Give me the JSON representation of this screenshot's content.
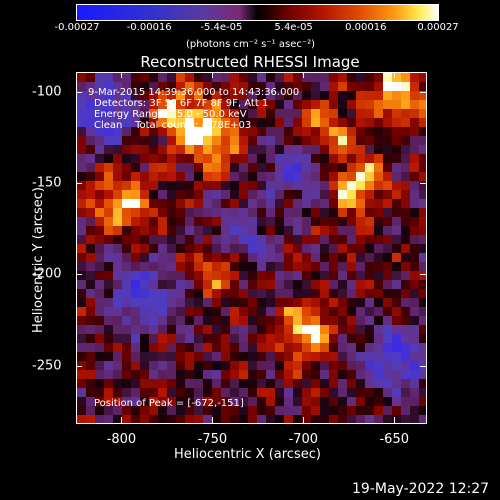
{
  "chart_data": {
    "type": "heatmap",
    "title": "Reconstructed RHESSI Image",
    "xlabel": "Heliocentric X (arcsec)",
    "ylabel": "Heliocentric Y (arcsec)",
    "xlim": [
      -825,
      -632
    ],
    "ylim": [
      -282,
      -89
    ],
    "x_ticks": [
      "-800",
      "-750",
      "-700",
      "-650"
    ],
    "y_ticks": [
      "-100",
      "-150",
      "-200",
      "-250"
    ],
    "colorbar": {
      "ticks": [
        "-0.00027",
        "-0.00016",
        "-5.4e-05",
        "5.4e-05",
        "0.00016",
        "0.00027"
      ],
      "unit_label": "(photons cm⁻² s⁻¹ asec⁻²)",
      "range": [
        -0.00027,
        0.00027
      ]
    },
    "annotations": {
      "time_range": "9-Mar-2015 14:39:36.000 to 14:43:36.000",
      "detectors": "Detectors: 3F 5F 6F 7F 8F 9F, Att 1",
      "energy": "Energy Range: 25.0 - 50.0 keV",
      "clean": "Clean    Total counts: 4.78E+03",
      "peak": "Position of Peak = [-672,-151]"
    },
    "bright_sources": [
      {
        "x": -672,
        "y": -151
      },
      {
        "x": -700,
        "y": -232
      },
      {
        "x": -750,
        "y": -125
      },
      {
        "x": -770,
        "y": -112
      },
      {
        "x": -745,
        "y": -195
      },
      {
        "x": -800,
        "y": -160
      },
      {
        "x": -690,
        "y": -125
      },
      {
        "x": -650,
        "y": -100
      }
    ],
    "dark_regions": [
      {
        "x": -790,
        "y": -210
      },
      {
        "x": -735,
        "y": -185
      },
      {
        "x": -650,
        "y": -245
      },
      {
        "x": -810,
        "y": -110
      },
      {
        "x": -700,
        "y": -140
      }
    ]
  },
  "footer": {
    "timestamp": "19-May-2022 12:27"
  }
}
